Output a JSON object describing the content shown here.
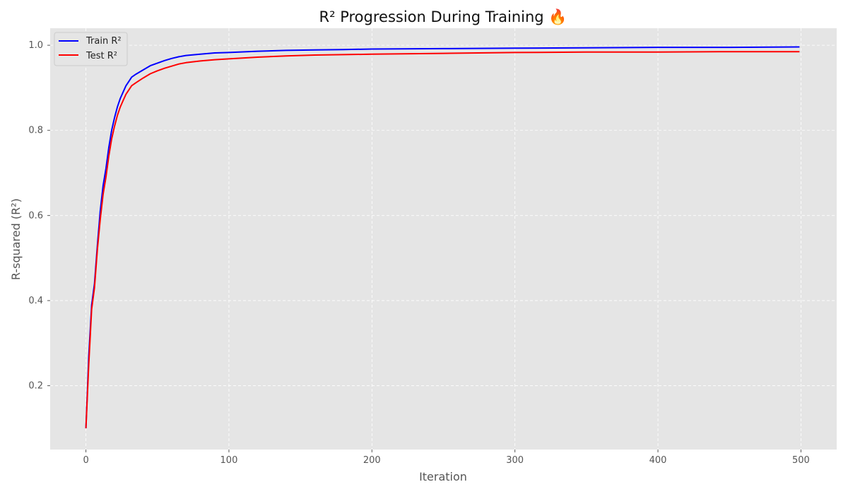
{
  "chart_data": {
    "type": "line",
    "title": "R² Progression During Training 🔥",
    "xlabel": "Iteration",
    "ylabel": "R-squared (R²)",
    "xlim": [
      -25,
      525
    ],
    "ylim": [
      0.05,
      1.04
    ],
    "xticks": [
      0,
      100,
      200,
      300,
      400,
      500
    ],
    "yticks": [
      0.2,
      0.4,
      0.6,
      0.8,
      1.0
    ],
    "xtick_labels": [
      "0",
      "100",
      "200",
      "300",
      "400",
      "500"
    ],
    "ytick_labels": [
      "0.2",
      "0.4",
      "0.6",
      "0.8",
      "1.0"
    ],
    "grid": true,
    "legend_position": "top-left",
    "background": "#e5e5e5",
    "series": [
      {
        "name": "Train R²",
        "color": "#0000ff",
        "x": [
          0,
          2,
          4,
          6,
          8,
          10,
          12,
          14,
          16,
          18,
          20,
          22,
          24,
          26,
          28,
          30,
          32,
          35,
          40,
          45,
          50,
          55,
          60,
          65,
          70,
          80,
          90,
          100,
          120,
          140,
          160,
          180,
          200,
          250,
          300,
          350,
          400,
          450,
          499
        ],
        "y": [
          0.1,
          0.27,
          0.39,
          0.44,
          0.53,
          0.61,
          0.67,
          0.71,
          0.76,
          0.8,
          0.83,
          0.855,
          0.875,
          0.89,
          0.905,
          0.915,
          0.925,
          0.932,
          0.942,
          0.952,
          0.958,
          0.964,
          0.969,
          0.973,
          0.976,
          0.979,
          0.982,
          0.983,
          0.986,
          0.988,
          0.989,
          0.99,
          0.991,
          0.992,
          0.993,
          0.994,
          0.995,
          0.995,
          0.996
        ]
      },
      {
        "name": "Test R²",
        "color": "#ff0000",
        "x": [
          0,
          2,
          4,
          6,
          8,
          10,
          12,
          14,
          16,
          18,
          20,
          22,
          24,
          26,
          28,
          30,
          32,
          35,
          40,
          45,
          50,
          55,
          60,
          65,
          70,
          80,
          90,
          100,
          120,
          140,
          160,
          180,
          200,
          250,
          300,
          350,
          400,
          450,
          499
        ],
        "y": [
          0.1,
          0.25,
          0.38,
          0.43,
          0.52,
          0.59,
          0.65,
          0.69,
          0.74,
          0.78,
          0.81,
          0.835,
          0.855,
          0.87,
          0.885,
          0.895,
          0.905,
          0.912,
          0.923,
          0.933,
          0.94,
          0.946,
          0.951,
          0.956,
          0.959,
          0.963,
          0.966,
          0.968,
          0.972,
          0.975,
          0.977,
          0.978,
          0.979,
          0.981,
          0.983,
          0.984,
          0.984,
          0.985,
          0.985
        ]
      }
    ]
  }
}
